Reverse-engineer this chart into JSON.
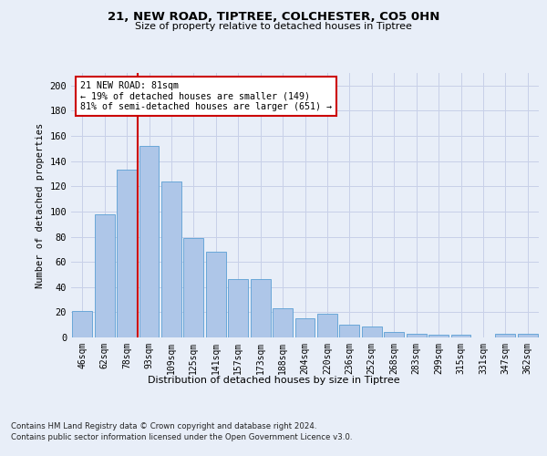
{
  "title_line1": "21, NEW ROAD, TIPTREE, COLCHESTER, CO5 0HN",
  "title_line2": "Size of property relative to detached houses in Tiptree",
  "xlabel": "Distribution of detached houses by size in Tiptree",
  "ylabel": "Number of detached properties",
  "categories": [
    "46sqm",
    "62sqm",
    "78sqm",
    "93sqm",
    "109sqm",
    "125sqm",
    "141sqm",
    "157sqm",
    "173sqm",
    "188sqm",
    "204sqm",
    "220sqm",
    "236sqm",
    "252sqm",
    "268sqm",
    "283sqm",
    "299sqm",
    "315sqm",
    "331sqm",
    "347sqm",
    "362sqm"
  ],
  "values": [
    21,
    98,
    133,
    152,
    124,
    79,
    68,
    46,
    46,
    23,
    15,
    19,
    10,
    9,
    4,
    3,
    2,
    2,
    0,
    3,
    3
  ],
  "bar_color": "#aec6e8",
  "bar_edge_color": "#5a9fd4",
  "vline_color": "#cc0000",
  "annotation_text": "21 NEW ROAD: 81sqm\n← 19% of detached houses are smaller (149)\n81% of semi-detached houses are larger (651) →",
  "annotation_box_color": "#ffffff",
  "annotation_box_edge": "#cc0000",
  "ylim": [
    0,
    210
  ],
  "yticks": [
    0,
    20,
    40,
    60,
    80,
    100,
    120,
    140,
    160,
    180,
    200
  ],
  "footer_line1": "Contains HM Land Registry data © Crown copyright and database right 2024.",
  "footer_line2": "Contains public sector information licensed under the Open Government Licence v3.0.",
  "background_color": "#e8eef8"
}
